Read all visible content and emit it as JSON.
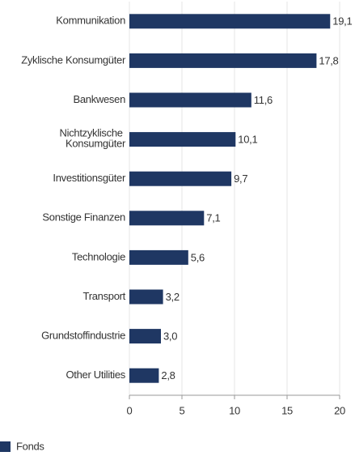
{
  "chart_data": {
    "type": "bar",
    "orientation": "horizontal",
    "categories": [
      "Kommunikation",
      "Zyklische Konsumgüter",
      "Bankwesen",
      "Nichtzyklische Konsumgüter",
      "Investitionsgüter",
      "Sonstige Finanzen",
      "Technologie",
      "Transport",
      "Grundstoffindustrie",
      "Other Utilities"
    ],
    "series": [
      {
        "name": "Fonds",
        "color": "#1f3763",
        "values": [
          19.1,
          17.8,
          11.6,
          10.1,
          9.7,
          7.1,
          5.6,
          3.2,
          3.0,
          2.8
        ],
        "value_labels": [
          "19,1",
          "17,8",
          "11,6",
          "10,1",
          "9,7",
          "7,1",
          "5,6",
          "3,2",
          "3,0",
          "2,8"
        ]
      }
    ],
    "xlim": [
      0,
      20
    ],
    "xticks": [
      0,
      5,
      10,
      15,
      20
    ],
    "grid": true,
    "legend": "bottom-left"
  }
}
